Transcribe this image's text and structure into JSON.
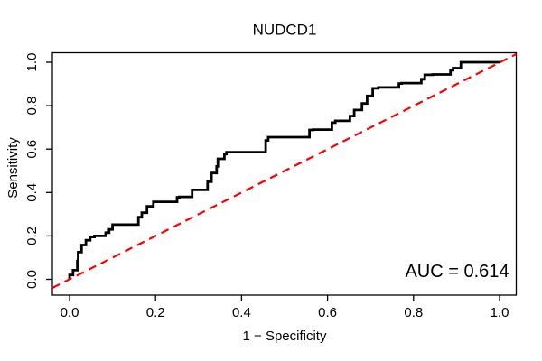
{
  "figure": {
    "background": "#ffffff"
  },
  "chart_data": {
    "type": "line",
    "subtype": "roc-curve",
    "title": "NUDCD1",
    "xlabel": "1 − Specificity",
    "ylabel": "Sensitivity",
    "annotation": "AUC = 0.614",
    "auc": 0.614,
    "xlim": [
      0.0,
      1.0
    ],
    "ylim": [
      0.0,
      1.0
    ],
    "grid": false,
    "legend": "none",
    "x_ticks": {
      "values": [
        0.0,
        0.2,
        0.4,
        0.6,
        0.8,
        1.0
      ],
      "labels": [
        "0.0",
        "0.2",
        "0.4",
        "0.6",
        "0.8",
        "1.0"
      ]
    },
    "y_ticks": {
      "values": [
        0.0,
        0.2,
        0.4,
        0.6,
        0.8,
        1.0
      ],
      "labels": [
        "0.0",
        "0.2",
        "0.4",
        "0.6",
        "0.8",
        "1.0"
      ]
    },
    "colors": {
      "roc_curve": "#000000",
      "reference_line": "#ff0000",
      "axis": "#000000",
      "text": "#000000"
    },
    "series": [
      {
        "name": "ROC curve",
        "draw": "steps",
        "color_key": "roc_curve",
        "points": [
          [
            0.0,
            0.0
          ],
          [
            0.008,
            0.02
          ],
          [
            0.01,
            0.042
          ],
          [
            0.018,
            0.042
          ],
          [
            0.02,
            0.085
          ],
          [
            0.028,
            0.125
          ],
          [
            0.038,
            0.158
          ],
          [
            0.048,
            0.18
          ],
          [
            0.058,
            0.195
          ],
          [
            0.084,
            0.2
          ],
          [
            0.092,
            0.215
          ],
          [
            0.1,
            0.23
          ],
          [
            0.107,
            0.252
          ],
          [
            0.16,
            0.252
          ],
          [
            0.168,
            0.286
          ],
          [
            0.18,
            0.307
          ],
          [
            0.195,
            0.336
          ],
          [
            0.21,
            0.357
          ],
          [
            0.25,
            0.357
          ],
          [
            0.255,
            0.378
          ],
          [
            0.285,
            0.38
          ],
          [
            0.296,
            0.412
          ],
          [
            0.321,
            0.412
          ],
          [
            0.33,
            0.45
          ],
          [
            0.342,
            0.49
          ],
          [
            0.345,
            0.52
          ],
          [
            0.36,
            0.555
          ],
          [
            0.365,
            0.577
          ],
          [
            0.39,
            0.586
          ],
          [
            0.456,
            0.586
          ],
          [
            0.462,
            0.64
          ],
          [
            0.47,
            0.655
          ],
          [
            0.558,
            0.655
          ],
          [
            0.566,
            0.688
          ],
          [
            0.61,
            0.69
          ],
          [
            0.618,
            0.722
          ],
          [
            0.652,
            0.73
          ],
          [
            0.662,
            0.752
          ],
          [
            0.68,
            0.78
          ],
          [
            0.692,
            0.81
          ],
          [
            0.705,
            0.845
          ],
          [
            0.718,
            0.88
          ],
          [
            0.766,
            0.884
          ],
          [
            0.772,
            0.902
          ],
          [
            0.818,
            0.904
          ],
          [
            0.826,
            0.922
          ],
          [
            0.845,
            0.942
          ],
          [
            0.886,
            0.944
          ],
          [
            0.892,
            0.963
          ],
          [
            0.91,
            0.973
          ],
          [
            0.926,
            1.0
          ],
          [
            1.0,
            1.0
          ]
        ]
      },
      {
        "name": "reference diagonal",
        "draw": "dashed-line",
        "color_key": "reference_line",
        "from": [
          0.0,
          0.0
        ],
        "to": [
          1.0,
          1.0
        ]
      }
    ]
  }
}
